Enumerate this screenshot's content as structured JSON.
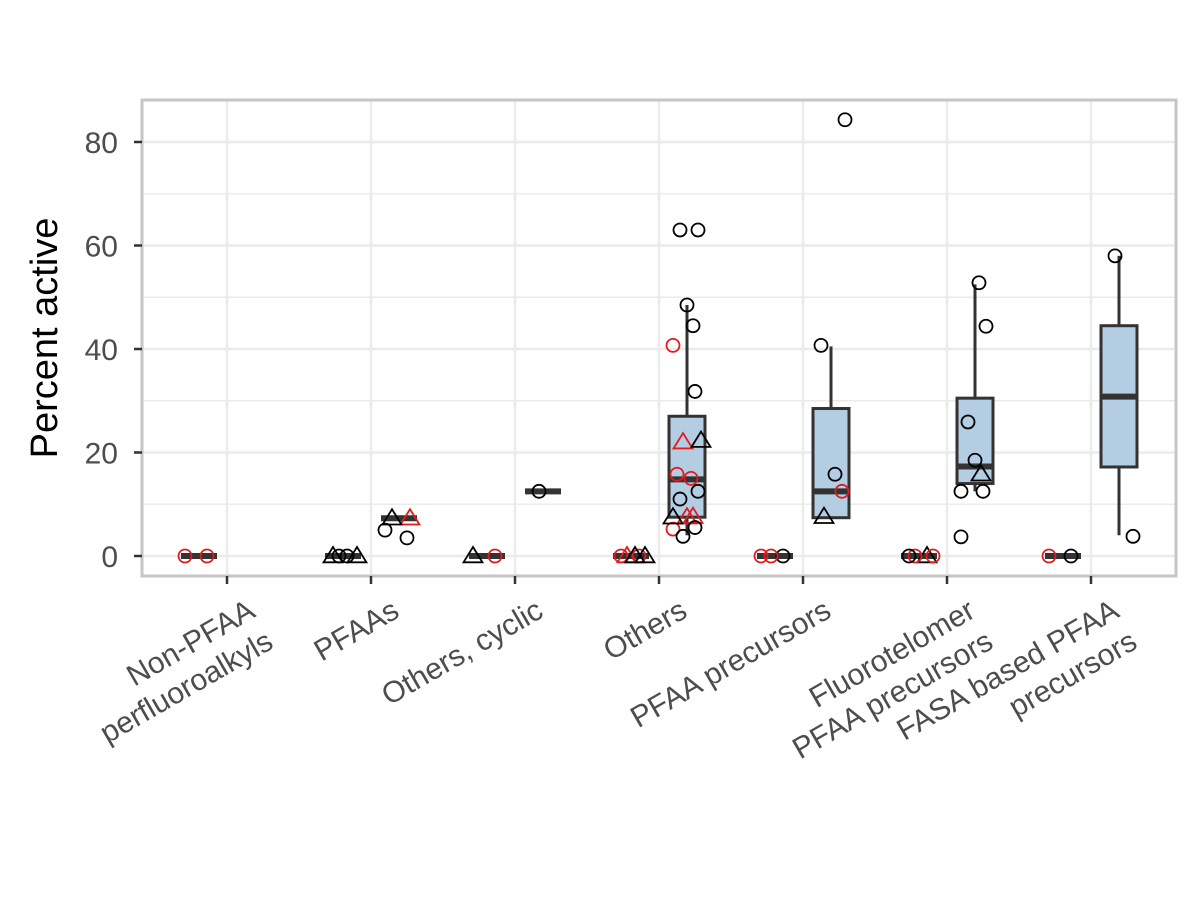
{
  "chart_data": {
    "type": "box",
    "title": "",
    "xlabel": "",
    "ylabel": "Percent active",
    "ylim": [
      -3.5,
      88
    ],
    "y_ticks": [
      0,
      20,
      40,
      60,
      80
    ],
    "grid": true,
    "legend": "none",
    "colors": {
      "box_fill": "#b3cde3",
      "box_line": "#333333",
      "point_black": "#000000",
      "point_red": "#e41a1c",
      "grid": "#ebebeb",
      "panel_border": "#c6c6c6",
      "tick_text": "#4d4d4d"
    },
    "categories": [
      "Non-PFAA perfluoroalkyls",
      "PFAAs",
      "Others, cyclic",
      "Others",
      "PFAA precursors",
      "Fluorotelomer PFAA precursors",
      "FASA based PFAA precursors"
    ],
    "category_label_lines": [
      [
        "Non-PFAA",
        "perfluoroalkyls"
      ],
      [
        "PFAAs"
      ],
      [
        "Others, cyclic"
      ],
      [
        "Others"
      ],
      [
        "PFAA precursors"
      ],
      [
        "Fluorotelomer",
        "PFAA precursors"
      ],
      [
        "FASA based PFAA",
        "precursors"
      ]
    ],
    "boxes": [
      {
        "category": "Non-PFAA perfluoroalkyls",
        "min": 0,
        "q1": 0,
        "median": 0,
        "q3": 0,
        "max": 0
      },
      {
        "category": "PFAAs",
        "min": 0,
        "q1": 0,
        "median": 0,
        "q3": 0,
        "max": 0
      },
      {
        "category": "PFAAs",
        "min": 7.3,
        "q1": 7.3,
        "median": 7.3,
        "q3": 7.3,
        "max": 7.3
      },
      {
        "category": "Others, cyclic",
        "min": 0,
        "q1": 0,
        "median": 0,
        "q3": 0,
        "max": 0
      },
      {
        "category": "Others, cyclic",
        "min": 12.5,
        "q1": 12.5,
        "median": 12.5,
        "q3": 12.5,
        "max": 12.5
      },
      {
        "category": "Others",
        "min": 0,
        "q1": 0,
        "median": 0,
        "q3": 0,
        "max": 0
      },
      {
        "category": "Others",
        "min": 4,
        "q1": 7.5,
        "median": 14.8,
        "q3": 27,
        "max": 48.5
      },
      {
        "category": "PFAA precursors",
        "min": 0,
        "q1": 0,
        "median": 0,
        "q3": 0,
        "max": 0
      },
      {
        "category": "PFAA precursors",
        "min": 7.4,
        "q1": 7.4,
        "median": 12.5,
        "q3": 28.5,
        "max": 40.5
      },
      {
        "category": "Fluorotelomer PFAA precursors",
        "min": 0,
        "q1": 0,
        "median": 0,
        "q3": 0,
        "max": 0
      },
      {
        "category": "Fluorotelomer PFAA precursors",
        "min": 12.5,
        "q1": 14,
        "median": 17.3,
        "q3": 30.5,
        "max": 52.5
      },
      {
        "category": "FASA based PFAA precursors",
        "min": 0,
        "q1": 0,
        "median": 0,
        "q3": 0,
        "max": 0
      },
      {
        "category": "FASA based PFAA precursors",
        "min": 4,
        "q1": 17.2,
        "median": 30.8,
        "q3": 44.5,
        "max": 58
      }
    ],
    "points": [
      {
        "category": "Non-PFAA perfluoroalkyls",
        "y": 0,
        "shape": "circle",
        "color": "red"
      },
      {
        "category": "Non-PFAA perfluoroalkyls",
        "y": 0,
        "shape": "circle",
        "color": "red"
      },
      {
        "category": "PFAAs",
        "y": 5,
        "shape": "circle",
        "color": "black"
      },
      {
        "category": "PFAAs",
        "y": 3.5,
        "shape": "circle",
        "color": "black"
      },
      {
        "category": "PFAAs",
        "y": 0,
        "shape": "circle",
        "color": "black"
      },
      {
        "category": "PFAAs",
        "y": 0,
        "shape": "triangle",
        "color": "black"
      },
      {
        "category": "PFAAs",
        "y": 0,
        "shape": "triangle",
        "color": "black"
      },
      {
        "category": "PFAAs",
        "y": 0,
        "shape": "circle",
        "color": "black"
      },
      {
        "category": "PFAAs",
        "y": 7.3,
        "shape": "triangle",
        "color": "red"
      },
      {
        "category": "PFAAs",
        "y": 7.3,
        "shape": "triangle",
        "color": "black"
      },
      {
        "category": "Others, cyclic",
        "y": 0,
        "shape": "triangle",
        "color": "black"
      },
      {
        "category": "Others, cyclic",
        "y": 0,
        "shape": "circle",
        "color": "red"
      },
      {
        "category": "Others, cyclic",
        "y": 12.5,
        "shape": "circle",
        "color": "black"
      },
      {
        "category": "Others",
        "y": 5.2,
        "shape": "circle",
        "color": "red"
      },
      {
        "category": "Others",
        "y": 0,
        "shape": "circle",
        "color": "red"
      },
      {
        "category": "Others",
        "y": 0,
        "shape": "triangle",
        "color": "red"
      },
      {
        "category": "Others",
        "y": 0,
        "shape": "triangle",
        "color": "black"
      },
      {
        "category": "Others",
        "y": 0,
        "shape": "circle",
        "color": "red"
      },
      {
        "category": "Others",
        "y": 0,
        "shape": "triangle",
        "color": "black"
      },
      {
        "category": "Others",
        "y": 63,
        "shape": "circle",
        "color": "black"
      },
      {
        "category": "Others",
        "y": 63,
        "shape": "circle",
        "color": "black"
      },
      {
        "category": "Others",
        "y": 48.5,
        "shape": "circle",
        "color": "black"
      },
      {
        "category": "Others",
        "y": 44.5,
        "shape": "circle",
        "color": "black"
      },
      {
        "category": "Others",
        "y": 40.7,
        "shape": "circle",
        "color": "red"
      },
      {
        "category": "Others",
        "y": 31.8,
        "shape": "circle",
        "color": "black"
      },
      {
        "category": "Others",
        "y": 22,
        "shape": "triangle",
        "color": "red"
      },
      {
        "category": "Others",
        "y": 22.3,
        "shape": "triangle",
        "color": "black"
      },
      {
        "category": "Others",
        "y": 15.8,
        "shape": "circle",
        "color": "red"
      },
      {
        "category": "Others",
        "y": 15,
        "shape": "circle",
        "color": "red"
      },
      {
        "category": "Others",
        "y": 12.5,
        "shape": "circle",
        "color": "black"
      },
      {
        "category": "Others",
        "y": 11,
        "shape": "circle",
        "color": "black"
      },
      {
        "category": "Others",
        "y": 7.5,
        "shape": "triangle",
        "color": "red"
      },
      {
        "category": "Others",
        "y": 7.6,
        "shape": "triangle",
        "color": "red"
      },
      {
        "category": "Others",
        "y": 7.5,
        "shape": "triangle",
        "color": "black"
      },
      {
        "category": "Others",
        "y": 5.5,
        "shape": "circle",
        "color": "black"
      },
      {
        "category": "Others",
        "y": 3.8,
        "shape": "circle",
        "color": "black"
      },
      {
        "category": "PFAA precursors",
        "y": 0,
        "shape": "circle",
        "color": "red"
      },
      {
        "category": "PFAA precursors",
        "y": 0,
        "shape": "circle",
        "color": "black"
      },
      {
        "category": "PFAA precursors",
        "y": 0,
        "shape": "circle",
        "color": "red"
      },
      {
        "category": "PFAA precursors",
        "y": 84.3,
        "shape": "circle",
        "color": "black"
      },
      {
        "category": "PFAA precursors",
        "y": 40.7,
        "shape": "circle",
        "color": "black"
      },
      {
        "category": "PFAA precursors",
        "y": 15.8,
        "shape": "circle",
        "color": "black"
      },
      {
        "category": "PFAA precursors",
        "y": 12.5,
        "shape": "circle",
        "color": "red"
      },
      {
        "category": "PFAA precursors",
        "y": 7.6,
        "shape": "triangle",
        "color": "black"
      },
      {
        "category": "Fluorotelomer PFAA precursors",
        "y": 3.7,
        "shape": "circle",
        "color": "black"
      },
      {
        "category": "Fluorotelomer PFAA precursors",
        "y": 0,
        "shape": "triangle",
        "color": "black"
      },
      {
        "category": "Fluorotelomer PFAA precursors",
        "y": 0,
        "shape": "circle",
        "color": "red"
      },
      {
        "category": "Fluorotelomer PFAA precursors",
        "y": 0,
        "shape": "circle",
        "color": "red"
      },
      {
        "category": "Fluorotelomer PFAA precursors",
        "y": 0,
        "shape": "circle",
        "color": "black"
      },
      {
        "category": "Fluorotelomer PFAA precursors",
        "y": 52.8,
        "shape": "circle",
        "color": "black"
      },
      {
        "category": "Fluorotelomer PFAA precursors",
        "y": 44.4,
        "shape": "circle",
        "color": "black"
      },
      {
        "category": "Fluorotelomer PFAA precursors",
        "y": 25.9,
        "shape": "circle",
        "color": "black"
      },
      {
        "category": "Fluorotelomer PFAA precursors",
        "y": 18.5,
        "shape": "circle",
        "color": "black"
      },
      {
        "category": "Fluorotelomer PFAA precursors",
        "y": 15.8,
        "shape": "triangle",
        "color": "black"
      },
      {
        "category": "Fluorotelomer PFAA precursors",
        "y": 12.5,
        "shape": "circle",
        "color": "black"
      },
      {
        "category": "Fluorotelomer PFAA precursors",
        "y": 12.5,
        "shape": "circle",
        "color": "black"
      },
      {
        "category": "FASA based PFAA precursors",
        "y": 0,
        "shape": "circle",
        "color": "red"
      },
      {
        "category": "FASA based PFAA precursors",
        "y": 0,
        "shape": "circle",
        "color": "black"
      },
      {
        "category": "FASA based PFAA precursors",
        "y": 58,
        "shape": "circle",
        "color": "black"
      },
      {
        "category": "FASA based PFAA precursors",
        "y": 3.8,
        "shape": "circle",
        "color": "black"
      }
    ]
  }
}
